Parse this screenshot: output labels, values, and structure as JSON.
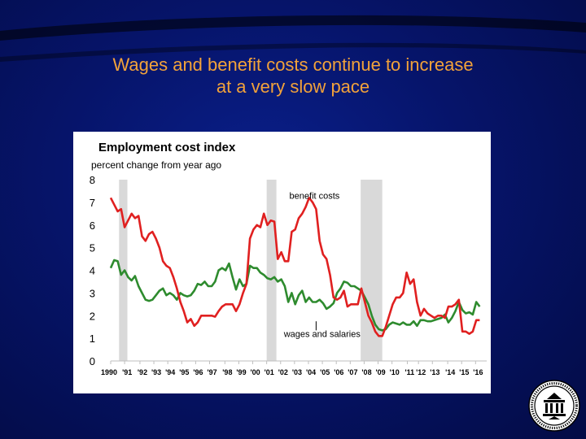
{
  "slide": {
    "title_line1": "Wages and benefit costs continue to increase",
    "title_line2": "at a very slow pace"
  },
  "colors": {
    "background": "#06146a",
    "title": "#f2a23a",
    "benefit_costs": "#e02020",
    "wages_and_salaries": "#2e8b2e",
    "recession_shading": "#d9d9d9"
  },
  "seal": {
    "icon": "federal-reserve-seal-icon"
  },
  "chart_data": {
    "type": "line",
    "title": "Employment cost index",
    "ylabel": "percent change from year ago",
    "xlabel": "",
    "ylim": [
      0,
      8
    ],
    "xlim": [
      1990,
      2017
    ],
    "yticks": [
      0,
      1,
      2,
      3,
      4,
      5,
      6,
      7,
      8
    ],
    "xticks": [
      {
        "x": 1990.0,
        "label": "1990"
      },
      {
        "x": 1991.0,
        "label": "'91"
      },
      {
        "x": 1992.1,
        "label": "'92"
      },
      {
        "x": 1993.1,
        "label": "'93"
      },
      {
        "x": 1994.1,
        "label": "'94"
      },
      {
        "x": 1995.1,
        "label": "'95"
      },
      {
        "x": 1996.1,
        "label": "'96"
      },
      {
        "x": 1997.1,
        "label": "'97"
      },
      {
        "x": 1998.2,
        "label": "'98"
      },
      {
        "x": 1999.2,
        "label": "'99"
      },
      {
        "x": 2000.2,
        "label": "'00"
      },
      {
        "x": 2001.2,
        "label": "'01"
      },
      {
        "x": 2002.2,
        "label": "'02"
      },
      {
        "x": 2003.2,
        "label": "'03"
      },
      {
        "x": 2004.2,
        "label": "'04"
      },
      {
        "x": 2005.2,
        "label": "'05"
      },
      {
        "x": 2006.2,
        "label": "'06"
      },
      {
        "x": 2007.2,
        "label": "'07"
      },
      {
        "x": 2008.2,
        "label": "'08"
      },
      {
        "x": 2009.2,
        "label": "'09"
      },
      {
        "x": 2010.2,
        "label": "'10"
      },
      {
        "x": 2011.3,
        "label": "'11"
      },
      {
        "x": 2012.1,
        "label": "'12"
      },
      {
        "x": 2013.1,
        "label": "'13"
      },
      {
        "x": 2014.2,
        "label": "'14"
      },
      {
        "x": 2015.2,
        "label": "'15"
      },
      {
        "x": 2016.2,
        "label": "'16"
      }
    ],
    "grid": false,
    "legend": "none",
    "recessions": [
      [
        1990.6,
        1991.2
      ],
      [
        2001.2,
        2001.9
      ],
      [
        2007.95,
        2009.5
      ]
    ],
    "annotations": [
      {
        "text": "benefit costs",
        "x": 2004.0,
        "y": 7.3
      },
      {
        "text": "wages and salaries",
        "x": 2003.6,
        "y": 1.2
      }
    ],
    "series": [
      {
        "name": "benefit costs",
        "x": [
          1990.0,
          1990.25,
          1990.5,
          1990.75,
          1991.0,
          1991.25,
          1991.5,
          1991.75,
          1992.0,
          1992.25,
          1992.5,
          1992.75,
          1993.0,
          1993.25,
          1993.5,
          1993.75,
          1994.0,
          1994.25,
          1994.5,
          1994.75,
          1995.0,
          1995.25,
          1995.5,
          1995.75,
          1996.0,
          1996.25,
          1996.5,
          1996.75,
          1997.0,
          1997.25,
          1997.5,
          1997.75,
          1998.0,
          1998.25,
          1998.5,
          1998.75,
          1999.0,
          1999.25,
          1999.5,
          1999.75,
          2000.0,
          2000.25,
          2000.5,
          2000.75,
          2001.0,
          2001.25,
          2001.5,
          2001.75,
          2002.0,
          2002.25,
          2002.5,
          2002.75,
          2003.0,
          2003.25,
          2003.5,
          2003.75,
          2004.0,
          2004.25,
          2004.5,
          2004.75,
          2005.0,
          2005.25,
          2005.5,
          2005.75,
          2006.0,
          2006.25,
          2006.5,
          2006.75,
          2007.0,
          2007.25,
          2007.5,
          2007.75,
          2008.0,
          2008.25,
          2008.5,
          2008.75,
          2009.0,
          2009.25,
          2009.5,
          2009.75,
          2010.0,
          2010.25,
          2010.5,
          2010.75,
          2011.0,
          2011.25,
          2011.5,
          2011.75,
          2012.0,
          2012.25,
          2012.5,
          2012.75,
          2013.0,
          2013.25,
          2013.5,
          2013.75,
          2014.0,
          2014.25,
          2014.5,
          2014.75,
          2015.0,
          2015.25,
          2015.5,
          2015.75,
          2016.0,
          2016.25,
          2016.5
        ],
        "values": [
          7.2,
          6.9,
          6.6,
          6.7,
          5.9,
          6.2,
          6.5,
          6.3,
          6.4,
          5.5,
          5.3,
          5.6,
          5.7,
          5.4,
          5.0,
          4.4,
          4.2,
          4.1,
          3.7,
          3.2,
          2.6,
          2.2,
          1.7,
          1.85,
          1.55,
          1.7,
          2.0,
          2.0,
          2.0,
          2.0,
          1.95,
          2.2,
          2.4,
          2.5,
          2.5,
          2.5,
          2.2,
          2.5,
          3.0,
          3.4,
          5.4,
          5.8,
          6.0,
          5.9,
          6.5,
          6.0,
          6.2,
          6.15,
          4.5,
          4.8,
          4.4,
          4.4,
          5.7,
          5.8,
          6.3,
          6.5,
          6.8,
          7.2,
          7.0,
          6.7,
          5.3,
          4.7,
          4.5,
          3.8,
          2.8,
          2.7,
          2.8,
          3.1,
          2.4,
          2.5,
          2.5,
          2.5,
          3.2,
          2.6,
          2.0,
          1.7,
          1.3,
          1.1,
          1.1,
          1.5,
          2.0,
          2.5,
          2.8,
          2.8,
          3.0,
          3.9,
          3.4,
          3.6,
          2.6,
          2.0,
          2.3,
          2.1,
          2.0,
          1.9,
          2.0,
          2.0,
          1.9,
          2.4,
          2.4,
          2.5,
          2.7,
          1.3,
          1.3,
          1.2,
          1.3,
          1.8,
          1.8
        ]
      },
      {
        "name": "wages and salaries",
        "x": [
          1990.0,
          1990.25,
          1990.5,
          1990.75,
          1991.0,
          1991.25,
          1991.5,
          1991.75,
          1992.0,
          1992.25,
          1992.5,
          1992.75,
          1993.0,
          1993.25,
          1993.5,
          1993.75,
          1994.0,
          1994.25,
          1994.5,
          1994.75,
          1995.0,
          1995.25,
          1995.5,
          1995.75,
          1996.0,
          1996.25,
          1996.5,
          1996.75,
          1997.0,
          1997.25,
          1997.5,
          1997.75,
          1998.0,
          1998.25,
          1998.5,
          1998.75,
          1999.0,
          1999.25,
          1999.5,
          1999.75,
          2000.0,
          2000.25,
          2000.5,
          2000.75,
          2001.0,
          2001.25,
          2001.5,
          2001.75,
          2002.0,
          2002.25,
          2002.5,
          2002.75,
          2003.0,
          2003.25,
          2003.5,
          2003.75,
          2004.0,
          2004.25,
          2004.5,
          2004.75,
          2005.0,
          2005.25,
          2005.5,
          2005.75,
          2006.0,
          2006.25,
          2006.5,
          2006.75,
          2007.0,
          2007.25,
          2007.5,
          2007.75,
          2008.0,
          2008.25,
          2008.5,
          2008.75,
          2009.0,
          2009.25,
          2009.5,
          2009.75,
          2010.0,
          2010.25,
          2010.5,
          2010.75,
          2011.0,
          2011.25,
          2011.5,
          2011.75,
          2012.0,
          2012.25,
          2012.5,
          2012.75,
          2013.0,
          2013.25,
          2013.5,
          2013.75,
          2014.0,
          2014.25,
          2014.5,
          2014.75,
          2015.0,
          2015.25,
          2015.5,
          2015.75,
          2016.0,
          2016.25,
          2016.5
        ],
        "values": [
          4.1,
          4.45,
          4.4,
          3.8,
          4.0,
          3.7,
          3.55,
          3.75,
          3.3,
          3.0,
          2.7,
          2.65,
          2.7,
          2.9,
          3.1,
          3.2,
          2.9,
          3.0,
          2.9,
          2.7,
          3.0,
          2.9,
          2.85,
          2.9,
          3.1,
          3.4,
          3.35,
          3.5,
          3.3,
          3.3,
          3.5,
          4.0,
          4.1,
          4.0,
          4.3,
          3.7,
          3.15,
          3.6,
          3.3,
          3.4,
          4.2,
          4.1,
          4.1,
          3.9,
          3.8,
          3.65,
          3.6,
          3.7,
          3.5,
          3.6,
          3.3,
          2.6,
          3.0,
          2.5,
          2.9,
          3.1,
          2.6,
          2.8,
          2.6,
          2.6,
          2.7,
          2.55,
          2.3,
          2.4,
          2.55,
          3.0,
          3.2,
          3.5,
          3.45,
          3.3,
          3.3,
          3.2,
          3.1,
          2.8,
          2.5,
          2.0,
          1.6,
          1.4,
          1.35,
          1.4,
          1.6,
          1.7,
          1.65,
          1.6,
          1.7,
          1.6,
          1.6,
          1.75,
          1.55,
          1.8,
          1.8,
          1.75,
          1.75,
          1.8,
          1.85,
          1.9,
          2.05,
          1.7,
          1.9,
          2.2,
          2.6,
          2.25,
          2.1,
          2.15,
          2.05,
          2.6,
          2.4
        ]
      }
    ]
  }
}
